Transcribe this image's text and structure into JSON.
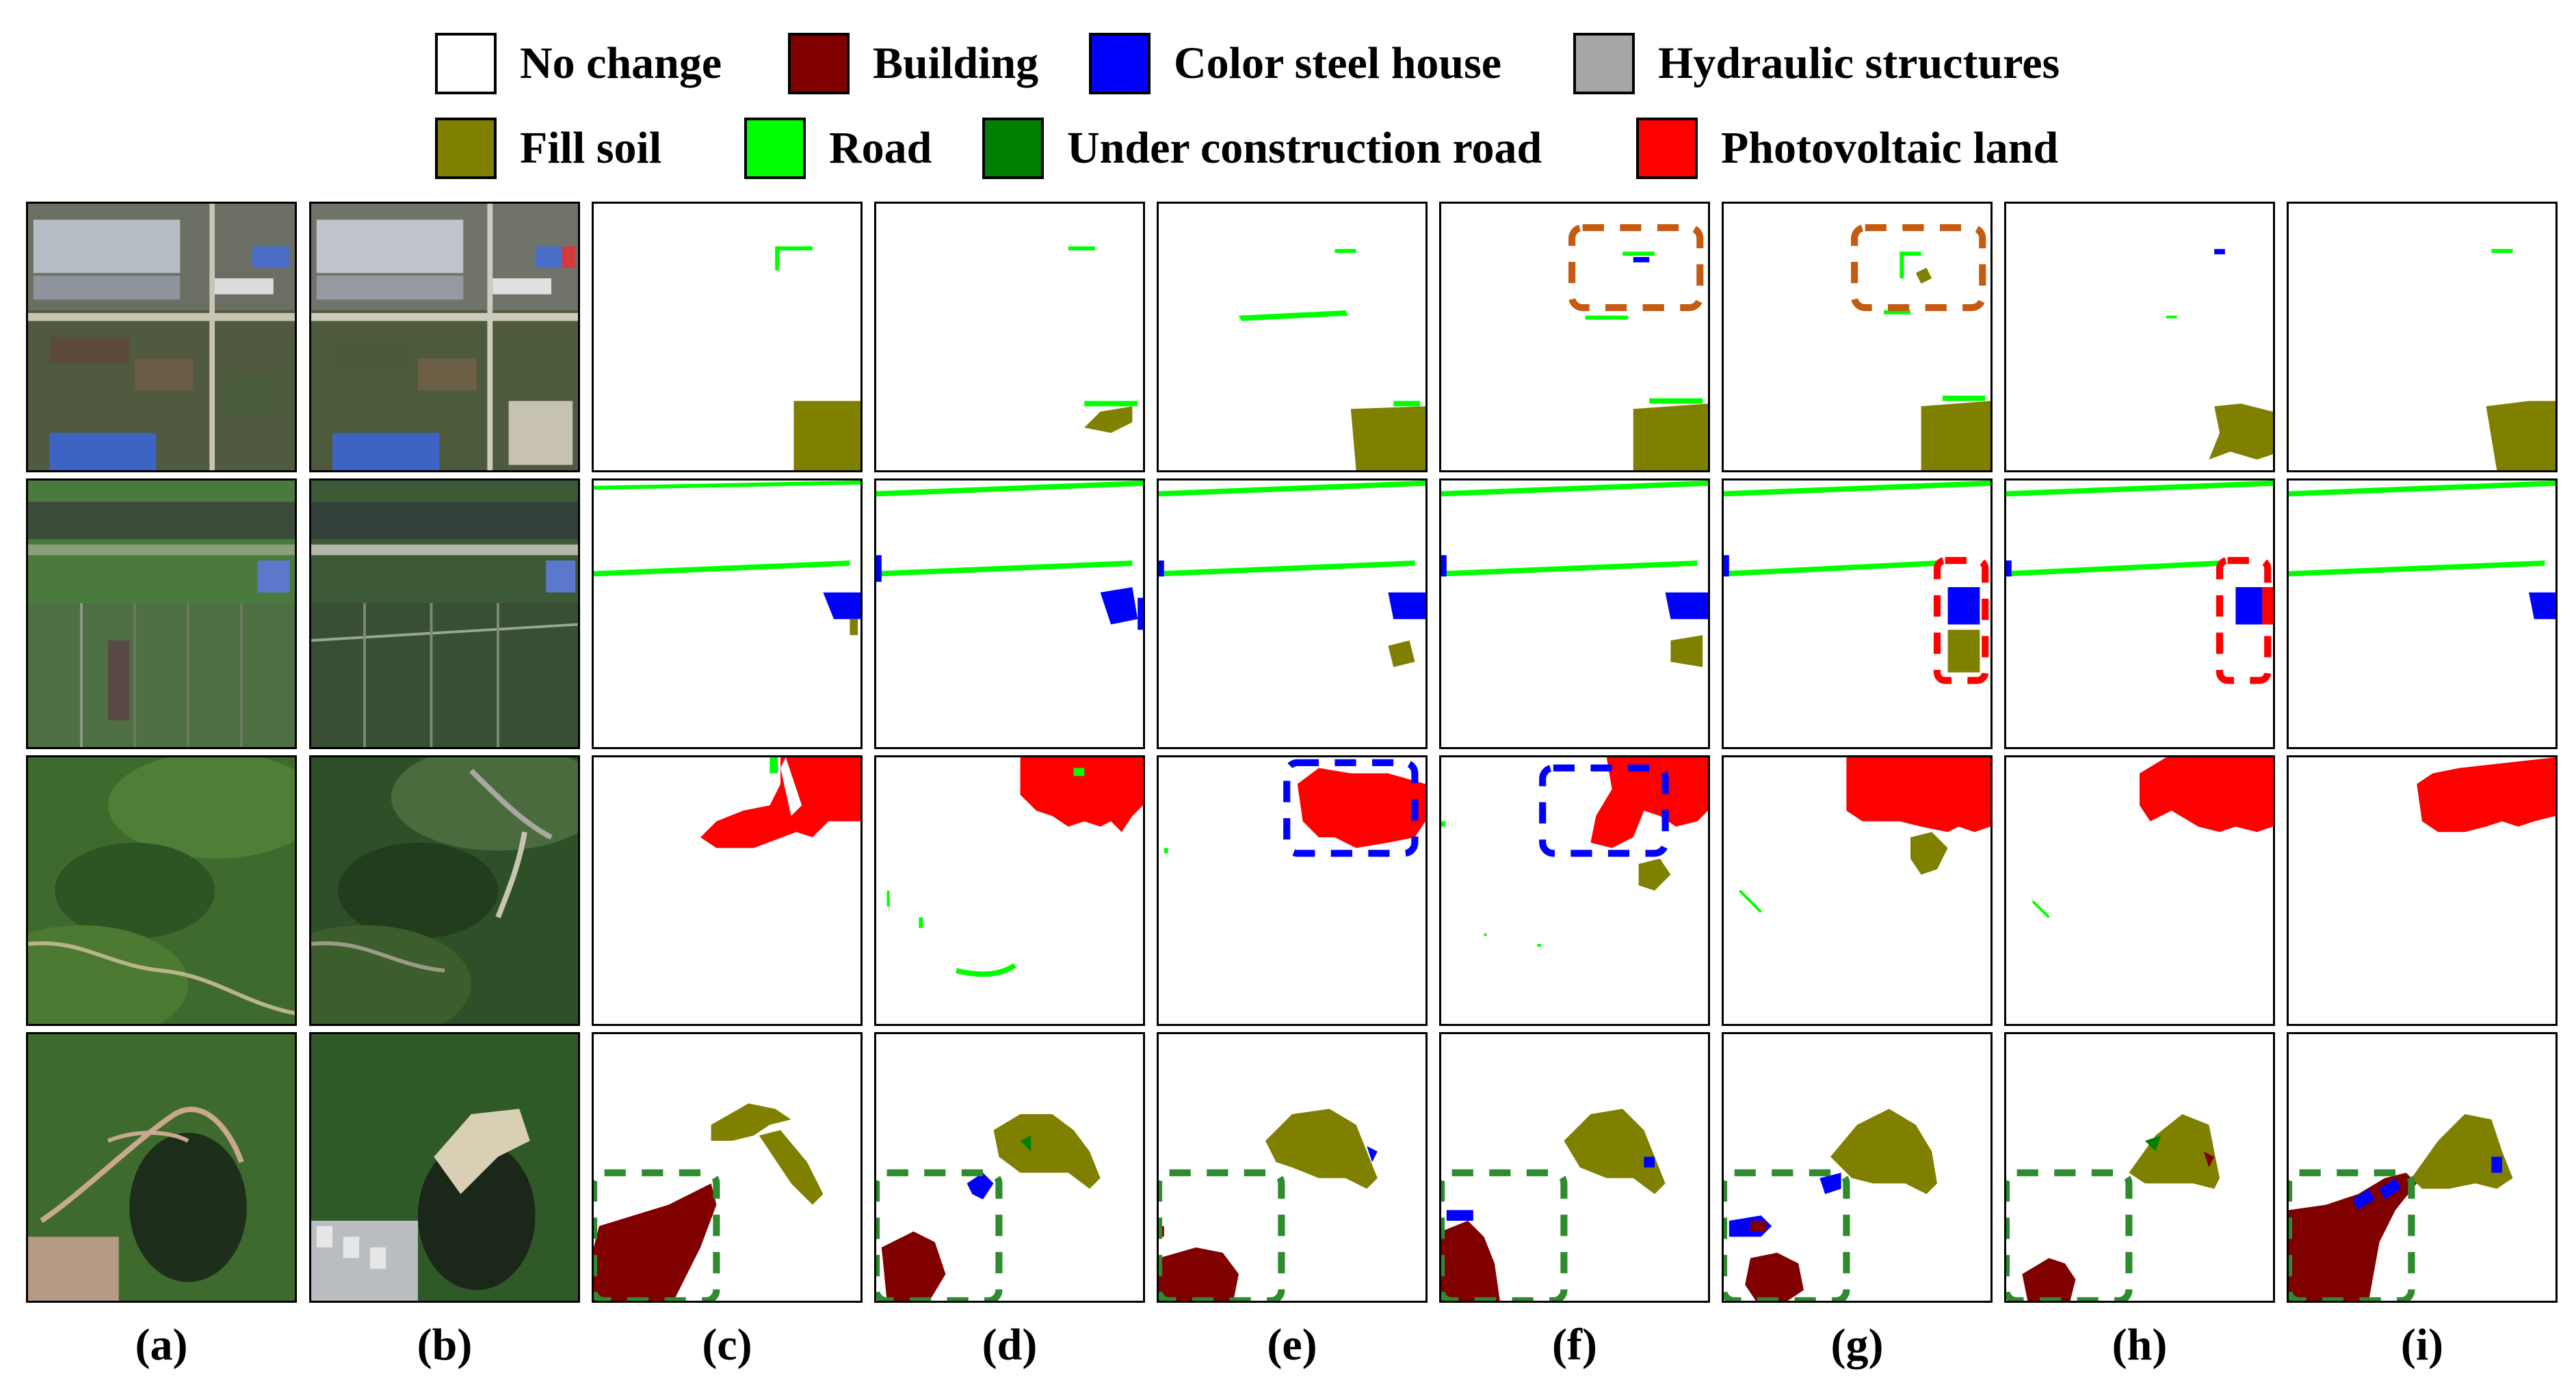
{
  "legend": {
    "items": [
      {
        "label": "No change",
        "color": "#ffffff"
      },
      {
        "label": "Building",
        "color": "#800000"
      },
      {
        "label": "Color steel house",
        "color": "#0000ff"
      },
      {
        "label": "Hydraulic structures",
        "color": "#a6a6a6"
      },
      {
        "label": "Fill soil",
        "color": "#808000"
      },
      {
        "label": "Road",
        "color": "#00ff00"
      },
      {
        "label": "Under construction road",
        "color": "#008000"
      },
      {
        "label": "Photovoltaic land",
        "color": "#ff0000"
      }
    ]
  },
  "columns": {
    "labels": [
      "(a)",
      "(b)",
      "(c)",
      "(d)",
      "(e)",
      "(f)",
      "(g)",
      "(h)",
      "(i)"
    ]
  },
  "highlight_colors": {
    "orange": "#c55a11",
    "red": "#ff0000",
    "blue": "#0000ff",
    "green": "#2e8b2e"
  }
}
